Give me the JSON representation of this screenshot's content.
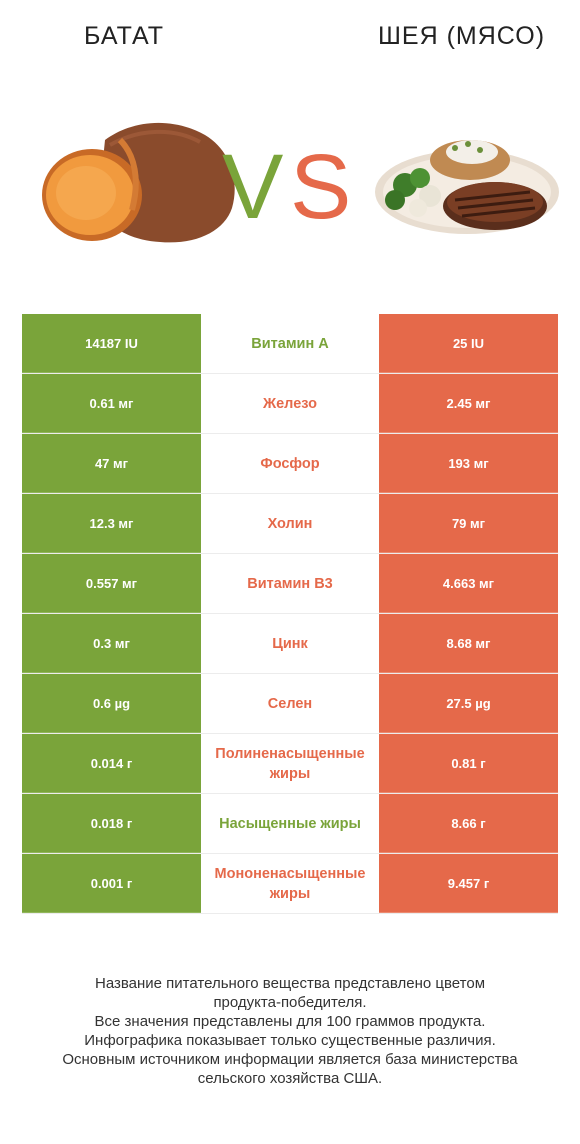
{
  "header": {
    "left_title": "БАТАТ",
    "right_title": "ШЕЯ (МЯСО)",
    "vs_v": "V",
    "vs_s": "S"
  },
  "colors": {
    "left_accent": "#7aa43a",
    "right_accent": "#e5694a"
  },
  "rows": [
    {
      "left": "14187 IU",
      "nutrient": "Витамин A",
      "right": "25 IU",
      "winner": "left"
    },
    {
      "left": "0.61 мг",
      "nutrient": "Железо",
      "right": "2.45 мг",
      "winner": "right"
    },
    {
      "left": "47 мг",
      "nutrient": "Фосфор",
      "right": "193 мг",
      "winner": "right"
    },
    {
      "left": "12.3 мг",
      "nutrient": "Холин",
      "right": "79 мг",
      "winner": "right"
    },
    {
      "left": "0.557 мг",
      "nutrient": "Витамин B3",
      "right": "4.663 мг",
      "winner": "right"
    },
    {
      "left": "0.3 мг",
      "nutrient": "Цинк",
      "right": "8.68 мг",
      "winner": "right"
    },
    {
      "left": "0.6 µg",
      "nutrient": "Селен",
      "right": "27.5 µg",
      "winner": "right"
    },
    {
      "left": "0.014 г",
      "nutrient": "Полиненасыщенные жиры",
      "right": "0.81 г",
      "winner": "right"
    },
    {
      "left": "0.018 г",
      "nutrient": "Насыщенные жиры",
      "right": "8.66 г",
      "winner": "left"
    },
    {
      "left": "0.001 г",
      "nutrient": "Мононенасыщенные жиры",
      "right": "9.457 г",
      "winner": "right"
    }
  ],
  "footer": {
    "line1": "Название питательного вещества представлено цветом",
    "line2": "продукта-победителя.",
    "line3": "Все значения представлены для 100 граммов продукта.",
    "line4": "Инфографика показывает только существенные различия.",
    "line5": "Основным источником информации является база министерства",
    "line6": "сельского хозяйства США."
  }
}
